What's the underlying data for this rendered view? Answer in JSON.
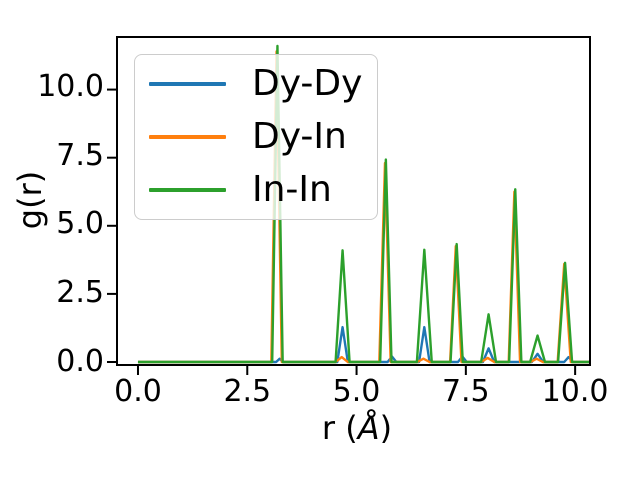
{
  "figure": {
    "background": "#ffffff",
    "axes": {
      "xlabel": {
        "prefix": "r (",
        "symbol": "Å",
        "suffix": ")"
      },
      "ylabel": "g(r)",
      "x_tick_labels": [
        "0.0",
        "2.5",
        "5.0",
        "7.5",
        "10.0"
      ],
      "y_tick_labels": [
        "10.0",
        "7.5",
        "5.0",
        "2.5",
        "0.0"
      ],
      "spine_color": "#000000",
      "text_color": "#000000"
    },
    "legend": {
      "background": "rgba(255,255,255,0.8)",
      "border_color": "#cccccc"
    }
  },
  "chart_data": {
    "type": "line",
    "title": "",
    "xlabel": "r (Å)",
    "ylabel": "g(r)",
    "xlim": [
      -0.48,
      10.34
    ],
    "ylim": [
      -0.11,
      11.93
    ],
    "x_ticks": [
      0.0,
      2.5,
      5.0,
      7.5,
      10.0
    ],
    "y_ticks": [
      0.0,
      2.5,
      5.0,
      7.5,
      10.0
    ],
    "grid": false,
    "legend_position": "upper left",
    "x_data_range": [
      0.0,
      10.34
    ],
    "peaks_format": "[r_angstrom, g_of_r_height, half_width_angstrom]",
    "series": [
      {
        "name": "Dy-Dy",
        "color": "#1f77b4",
        "baseline": 0,
        "peaks": [
          [
            3.24,
            0.12,
            0.08
          ],
          [
            4.68,
            1.28,
            0.12
          ],
          [
            5.81,
            0.2,
            0.1
          ],
          [
            6.55,
            1.28,
            0.12
          ],
          [
            7.42,
            0.2,
            0.1
          ],
          [
            8.02,
            0.5,
            0.13
          ],
          [
            9.14,
            0.3,
            0.13
          ],
          [
            9.85,
            0.18,
            0.1
          ]
        ]
      },
      {
        "name": "Dy-In",
        "color": "#ff7f0e",
        "baseline": 0,
        "peaks": [
          [
            3.17,
            11.4,
            0.12
          ],
          [
            4.66,
            0.18,
            0.14
          ],
          [
            5.65,
            7.3,
            0.13
          ],
          [
            6.53,
            0.12,
            0.14
          ],
          [
            7.27,
            4.25,
            0.13
          ],
          [
            8.0,
            0.15,
            0.15
          ],
          [
            8.61,
            6.25,
            0.13
          ],
          [
            9.12,
            0.12,
            0.14
          ],
          [
            9.75,
            3.6,
            0.15
          ]
        ]
      },
      {
        "name": "In-In",
        "color": "#2ca02c",
        "baseline": 0,
        "peaks": [
          [
            3.19,
            11.6,
            0.12
          ],
          [
            4.68,
            4.1,
            0.16
          ],
          [
            5.67,
            7.43,
            0.13
          ],
          [
            6.55,
            4.12,
            0.17
          ],
          [
            7.29,
            4.33,
            0.14
          ],
          [
            8.02,
            1.75,
            0.17
          ],
          [
            8.63,
            6.34,
            0.14
          ],
          [
            9.14,
            0.97,
            0.17
          ],
          [
            9.77,
            3.64,
            0.16
          ]
        ]
      }
    ]
  }
}
